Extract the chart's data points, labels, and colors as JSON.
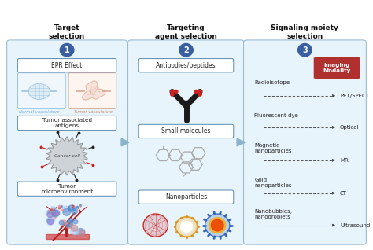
{
  "bg_color": "#ffffff",
  "panel_bg": "#e8f4fc",
  "panel_border": "#9bbdd4",
  "circle_color": "#3a5fa0",
  "arrow_color": "#8ab4cc",
  "box_border": "#5a8ab0",
  "imaging_modality_color": "#b03030",
  "normal_vasc_color": "#7ab0d4",
  "tumor_vasc_color": "#d48870",
  "panel1_title": "Target\nselection",
  "panel2_title": "Targeting\nagent selection",
  "panel3_title": "Signaling moiety\nselection",
  "label_epr": "EPR Effect",
  "label_taa": "Tumor associated\nantigens",
  "label_tme": "Tumor\nmicroenvironment",
  "normal_vasc_label": "Normal vasculature",
  "tumor_vasc_label": "Tumor vasculature",
  "label_ab": "Antibodies/peptides",
  "label_sm": "Small molecules",
  "label_np": "Nanoparticles",
  "right_items": [
    "Radioisotope",
    "Fluorescent dye",
    "Magnetic\nnanoparticles",
    "Gold\nnanoparticles",
    "Nanobubbles,\nnanodroplets"
  ],
  "right_arrows": [
    "PET/SPECT",
    "Optical",
    "MRI",
    "CT",
    "Ultrasound"
  ]
}
